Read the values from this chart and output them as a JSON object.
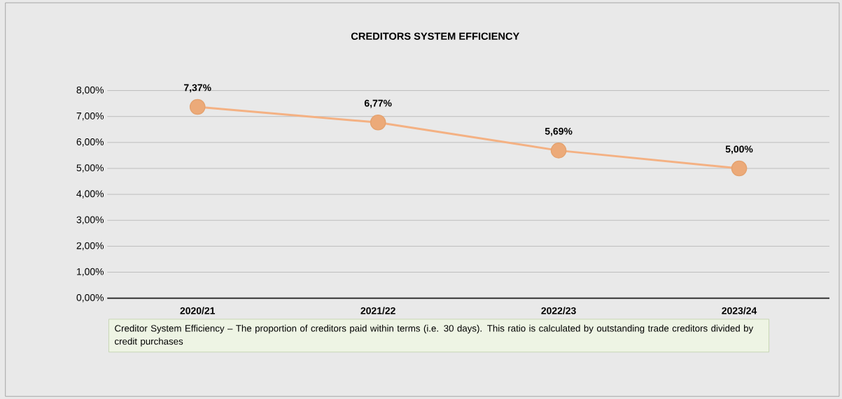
{
  "chart_data": {
    "type": "line",
    "title": "CREDITORS SYSTEM EFFICIENCY",
    "categories": [
      "2020/21",
      "2021/22",
      "2022/23",
      "2023/24"
    ],
    "series": [
      {
        "color": "#f4b183",
        "values": [
          7.37,
          6.77,
          5.69,
          5.0
        ],
        "value_labels": [
          "7,37%",
          "6,77%",
          "5,69%",
          "5,00%"
        ]
      }
    ],
    "ylim": [
      0,
      8
    ],
    "yticks": [
      {
        "value": 0,
        "label": "0,00%"
      },
      {
        "value": 1,
        "label": "1,00%"
      },
      {
        "value": 2,
        "label": "2,00%"
      },
      {
        "value": 3,
        "label": "3,00%"
      },
      {
        "value": 4,
        "label": "4,00%"
      },
      {
        "value": 5,
        "label": "5,00%"
      },
      {
        "value": 6,
        "label": "6,00%"
      },
      {
        "value": 7,
        "label": "7,00%"
      },
      {
        "value": 8,
        "label": "8,00%"
      }
    ],
    "grid": "y",
    "marker": "circle",
    "line_style": "solid",
    "annotations": [
      "Creditor System Efficiency –  The proportion of creditors paid within terms (i.e. 30 days).  This ratio is calculated by  outstanding trade creditors divided by credit purchases"
    ]
  }
}
